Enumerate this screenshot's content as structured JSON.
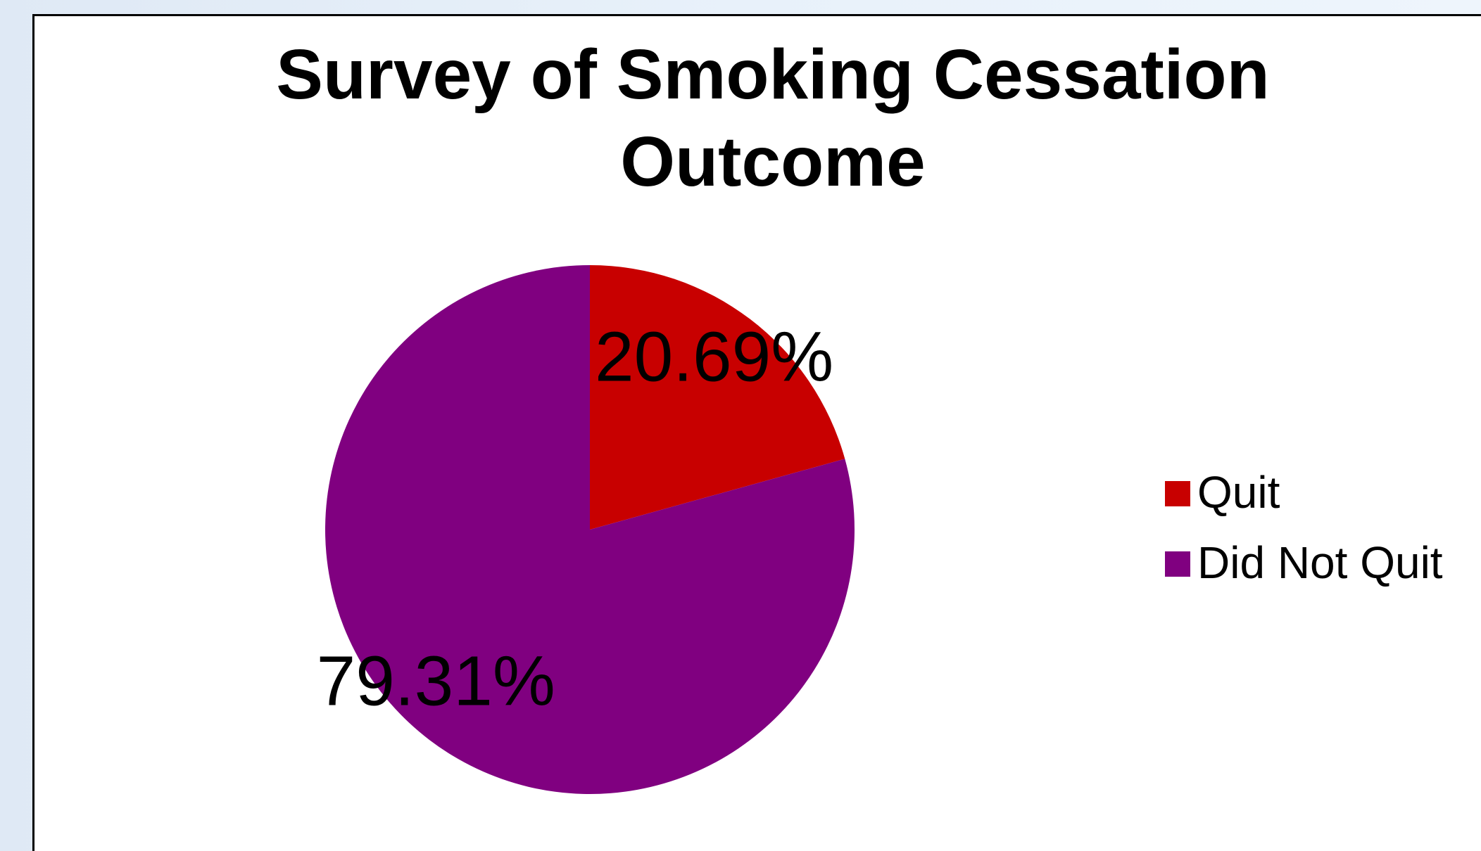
{
  "chart_data": {
    "type": "pie",
    "title": [
      "Survey of Smoking Cessation",
      "Outcome"
    ],
    "slices": [
      {
        "label": "Quit",
        "value": 20.69,
        "display": "20.69%",
        "color": "#c80000"
      },
      {
        "label": "Did Not Quit",
        "value": 79.31,
        "display": "79.31%",
        "color": "#800080"
      }
    ],
    "start_angle_deg": 0,
    "direction": "clockwise",
    "legend": {
      "placement": "right",
      "entries": [
        "Quit",
        "Did Not Quit"
      ]
    },
    "data_labels": true
  }
}
